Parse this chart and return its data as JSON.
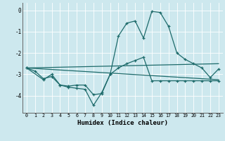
{
  "xlabel": "Humidex (Indice chaleur)",
  "xlim": [
    -0.5,
    23.5
  ],
  "ylim": [
    -4.8,
    0.35
  ],
  "yticks": [
    0,
    -1,
    -2,
    -3,
    -4
  ],
  "xticks": [
    0,
    1,
    2,
    3,
    4,
    5,
    6,
    7,
    8,
    9,
    10,
    11,
    12,
    13,
    14,
    15,
    16,
    17,
    18,
    19,
    20,
    21,
    22,
    23
  ],
  "bg_color": "#cde8ee",
  "line_color": "#1e6b6b",
  "grid_color": "#ffffff",
  "line1_x": [
    0,
    1,
    2,
    3,
    4,
    5,
    6,
    7,
    8,
    9,
    10,
    11,
    12,
    13,
    14,
    15,
    16,
    17,
    18,
    19,
    20,
    21,
    22,
    23
  ],
  "line1_y": [
    -2.7,
    -2.85,
    -3.2,
    -3.1,
    -3.5,
    -3.6,
    -3.65,
    -3.7,
    -4.45,
    -3.85,
    -3.0,
    -1.2,
    -0.6,
    -0.5,
    -1.3,
    -0.05,
    -0.1,
    -0.75,
    -2.0,
    -2.3,
    -2.5,
    -2.7,
    -3.15,
    -2.75
  ],
  "line2_x": [
    0,
    2,
    3,
    4,
    5,
    6,
    7,
    8,
    9,
    10,
    11,
    12,
    13,
    14,
    15,
    16,
    17,
    18,
    19,
    20,
    21,
    22,
    23
  ],
  "line2_y": [
    -2.7,
    -3.25,
    -3.0,
    -3.5,
    -3.55,
    -3.5,
    -3.5,
    -3.95,
    -3.9,
    -3.0,
    -2.7,
    -2.5,
    -2.35,
    -2.2,
    -3.3,
    -3.3,
    -3.3,
    -3.3,
    -3.3,
    -3.3,
    -3.3,
    -3.3,
    -3.3
  ],
  "line3_x": [
    0,
    23
  ],
  "line3_y": [
    -2.7,
    -2.5
  ],
  "line4_x": [
    0,
    23
  ],
  "line4_y": [
    -2.7,
    -3.25
  ]
}
